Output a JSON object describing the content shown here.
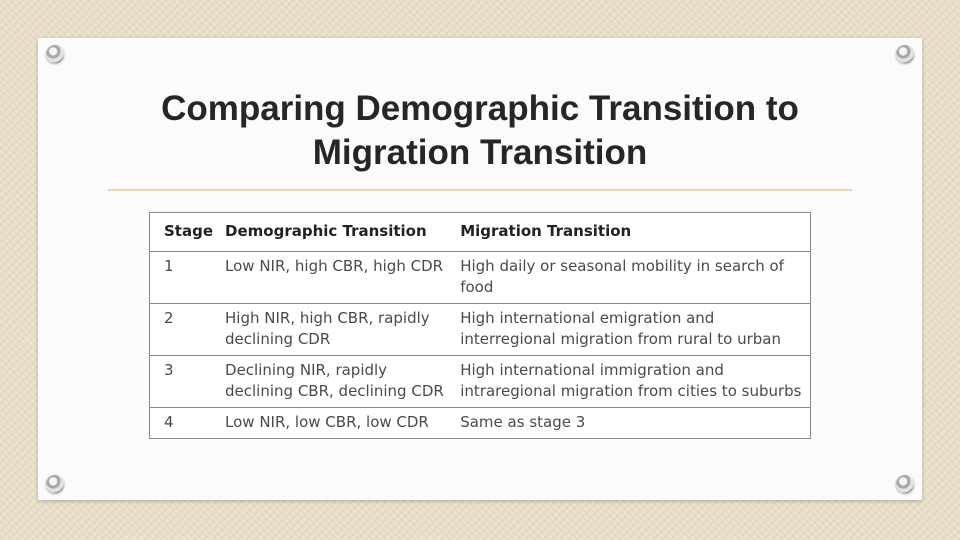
{
  "slide": {
    "title_line1": "Comparing Demographic Transition to",
    "title_line2": "Migration Transition"
  },
  "table": {
    "headers": [
      "Stage",
      "Demographic Transition",
      "Migration Transition"
    ],
    "rows": [
      [
        "1",
        "Low  NIR, high CBR, high CDR",
        "High daily or seasonal mobility in search of food"
      ],
      [
        "2",
        "High NIR, high CBR, rapidly declining CDR",
        "High international emigration and interregional migration from rural to urban"
      ],
      [
        "3",
        "Declining NIR, rapidly declining CBR, declining CDR",
        "High international immigration and intraregional migration from cities to suburbs"
      ],
      [
        "4",
        "Low NIR, low CBR, low CDR",
        "Same as stage 3"
      ]
    ]
  },
  "colors": {
    "background": "#e9dfc8",
    "card": "#fbfbfb",
    "accent_rule": "#e8d8b0",
    "table_border": "#8a8a8a"
  }
}
